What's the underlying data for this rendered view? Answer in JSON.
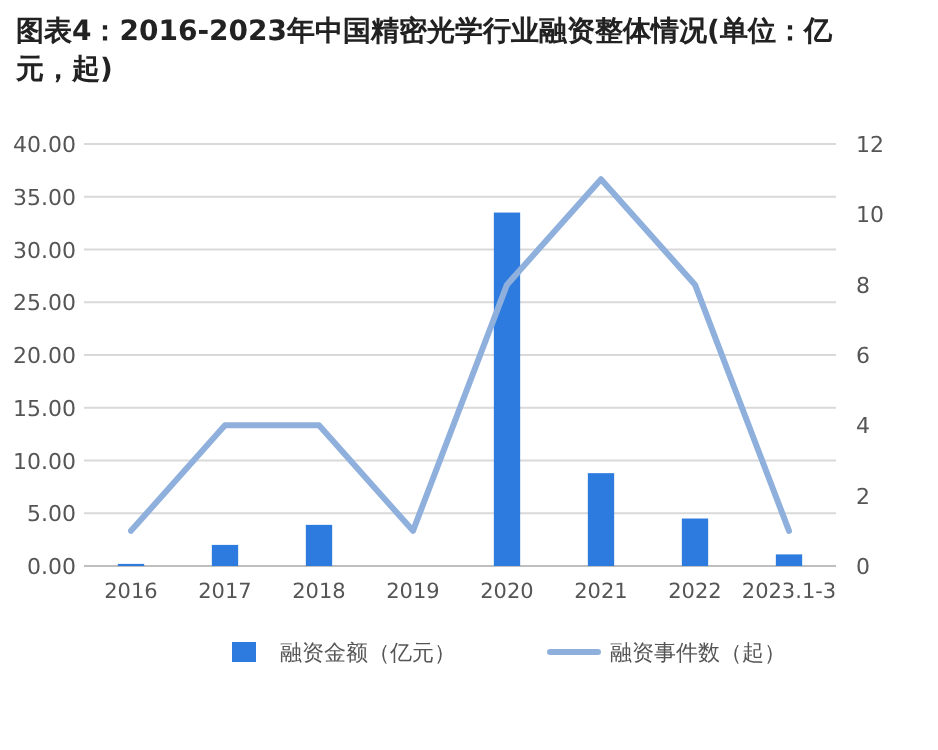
{
  "chart_data": {
    "type": "bar",
    "title": "图表4：2016-2023年中国精密光学行业融资整体情况(单位：亿元，起)",
    "categories": [
      "2016",
      "2017",
      "2018",
      "2019",
      "2020",
      "2021",
      "2022",
      "2023.1-3"
    ],
    "series": [
      {
        "name": "融资金额（亿元）",
        "type": "bar",
        "color": "#2e7be0",
        "values": [
          0.2,
          2.0,
          3.9,
          0,
          33.5,
          8.8,
          4.5,
          1.1
        ]
      },
      {
        "name": "融资事件数（起）",
        "type": "line",
        "axis": "y2",
        "color": "#8fb0dc",
        "values": [
          1,
          4,
          4,
          1,
          8,
          11,
          8,
          1
        ]
      }
    ],
    "ylim": [
      0,
      40
    ],
    "yticks": [
      {
        "value": 0,
        "label": "0.00"
      },
      {
        "value": 5,
        "label": "5.00"
      },
      {
        "value": 10,
        "label": "10.00"
      },
      {
        "value": 15,
        "label": "15.00"
      },
      {
        "value": 20,
        "label": "20.00"
      },
      {
        "value": 25,
        "label": "25.00"
      },
      {
        "value": 30,
        "label": "30.00"
      },
      {
        "value": 35,
        "label": "35.00"
      },
      {
        "value": 40,
        "label": "40.00"
      }
    ],
    "y2lim": [
      0,
      12
    ],
    "y2ticks": [
      0,
      2,
      4,
      6,
      8,
      10,
      12
    ],
    "grid": "y",
    "legend": "bottom"
  }
}
